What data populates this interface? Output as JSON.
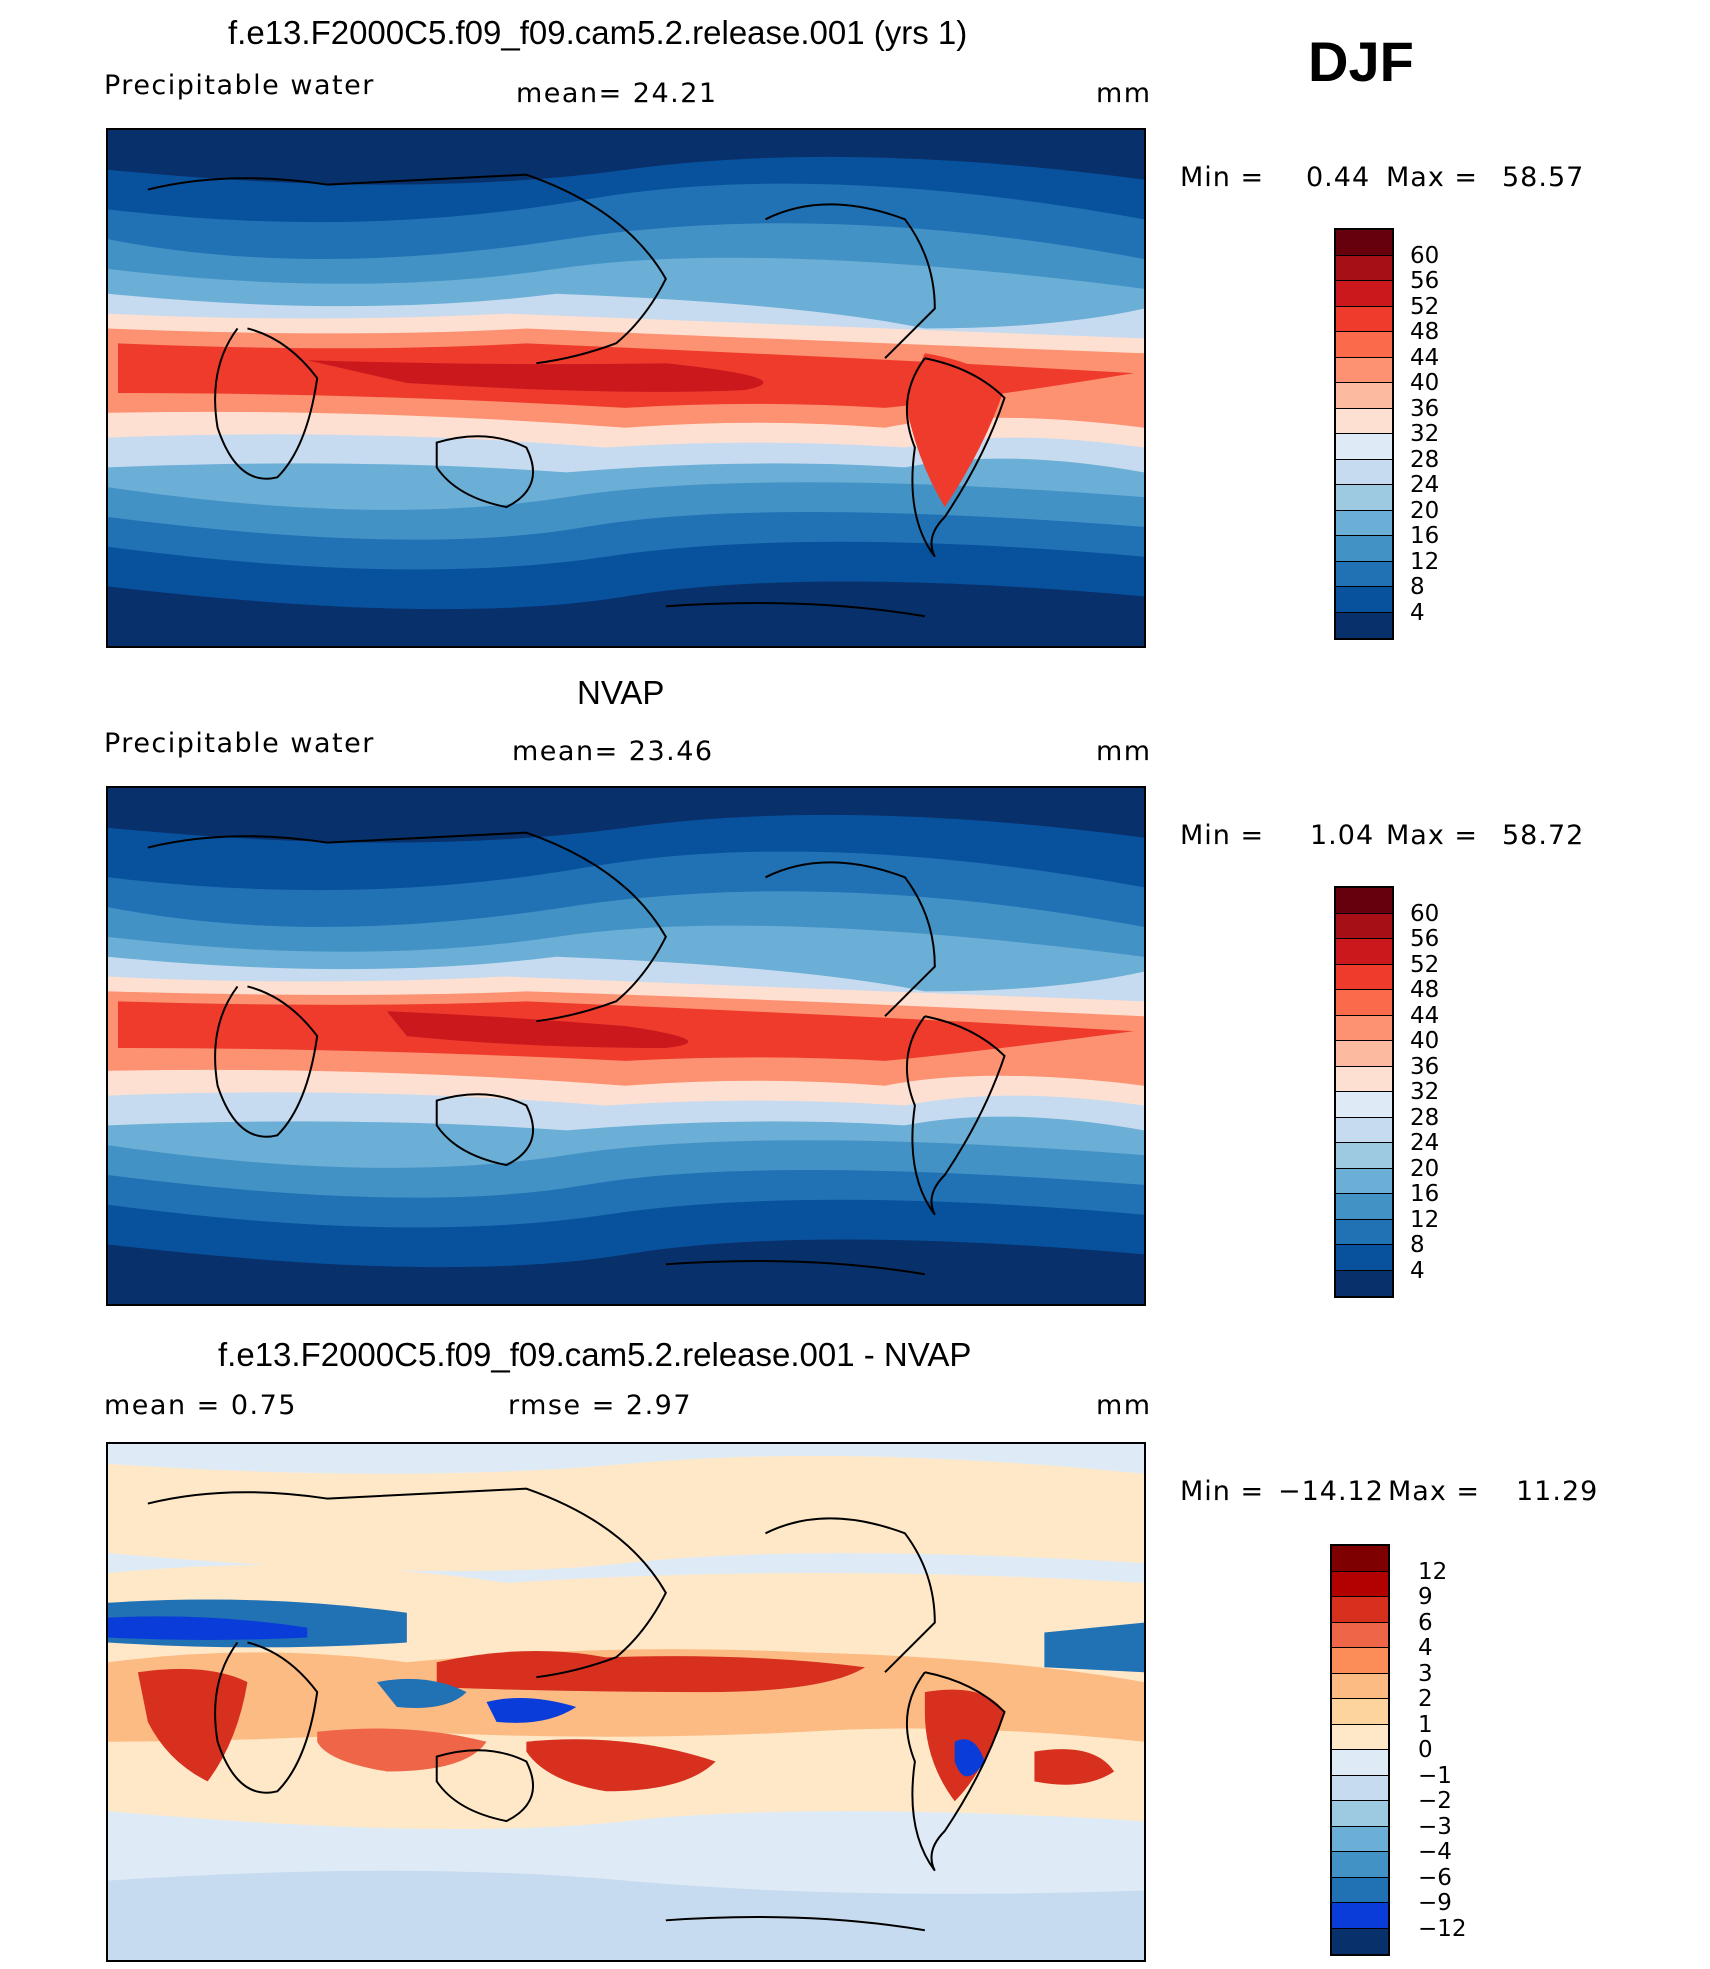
{
  "header": {
    "season": "DJF"
  },
  "panels": [
    {
      "title": "f.e13.F2000C5.f09_f09.cam5.2.release.001 (yrs 1)",
      "left_label": "Precipitable  water",
      "center_label": "mean=   24.21",
      "right_label": "mm",
      "min_label": "Min  =",
      "min_value": "0.44",
      "max_label": "Max  =",
      "max_value": "58.57",
      "colorbar": {
        "colors": [
          "#67000d",
          "#a50f15",
          "#cb181d",
          "#ef3b2c",
          "#fb6a4a",
          "#fc9272",
          "#fcbba1",
          "#fee0d2",
          "#deebf7",
          "#c6dbef",
          "#9ecae1",
          "#6baed6",
          "#4292c6",
          "#2171b5",
          "#08519c",
          "#08306b"
        ],
        "labels": [
          "60",
          "56",
          "52",
          "48",
          "44",
          "40",
          "36",
          "32",
          "28",
          "24",
          "20",
          "16",
          "12",
          "8",
          "4"
        ]
      }
    },
    {
      "title": "NVAP",
      "left_label": "Precipitable  water",
      "center_label": "mean=   23.46",
      "right_label": "mm",
      "min_label": "Min  =",
      "min_value": "1.04",
      "max_label": "Max  =",
      "max_value": "58.72",
      "colorbar": {
        "colors": [
          "#67000d",
          "#a50f15",
          "#cb181d",
          "#ef3b2c",
          "#fb6a4a",
          "#fc9272",
          "#fcbba1",
          "#fee0d2",
          "#deebf7",
          "#c6dbef",
          "#9ecae1",
          "#6baed6",
          "#4292c6",
          "#2171b5",
          "#08519c",
          "#08306b"
        ],
        "labels": [
          "60",
          "56",
          "52",
          "48",
          "44",
          "40",
          "36",
          "32",
          "28",
          "24",
          "20",
          "16",
          "12",
          "8",
          "4"
        ]
      }
    },
    {
      "title": "f.e13.F2000C5.f09_f09.cam5.2.release.001 - NVAP",
      "left_label": "mean  =     0.75",
      "center_label": "rmse  =     2.97",
      "right_label": "mm",
      "min_label": "Min  =",
      "min_value": "−14.12",
      "max_label": "Max  =",
      "max_value": "11.29",
      "colorbar": {
        "colors": [
          "#7f0000",
          "#b30000",
          "#d7301f",
          "#ef6548",
          "#fc8d59",
          "#fdbb84",
          "#fdd49e",
          "#fee8c8",
          "#deebf7",
          "#c6dbef",
          "#9ecae1",
          "#6baed6",
          "#4292c6",
          "#2171b5",
          "#0a3cd9",
          "#08306b"
        ],
        "labels": [
          "12",
          "9",
          "6",
          "4",
          "3",
          "2",
          "1",
          "0",
          "−1",
          "−2",
          "−3",
          "−4",
          "−6",
          "−9",
          "−12"
        ]
      }
    }
  ]
}
